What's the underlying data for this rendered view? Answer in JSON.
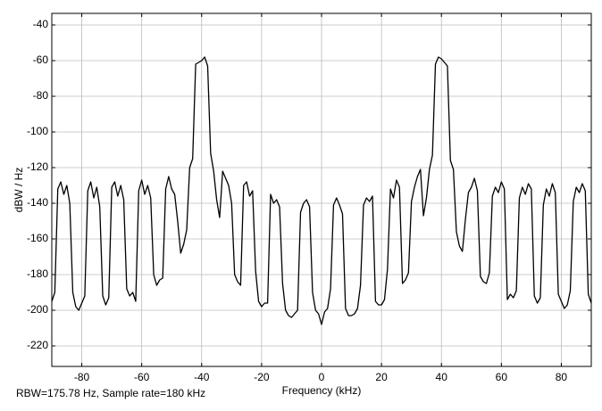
{
  "chart_data": {
    "type": "line",
    "xlabel": "Frequency (kHz)",
    "ylabel": "dBW / Hz",
    "annotation": "RBW=175.78 Hz, Sample rate=180 kHz",
    "color": "#000000",
    "grid": true,
    "xlim": [
      -90,
      90
    ],
    "ylim": [
      -231.5,
      -33.5
    ],
    "xticks": [
      -80,
      -60,
      -40,
      -20,
      0,
      20,
      40,
      60,
      80
    ],
    "yticks": [
      -220,
      -200,
      -180,
      -160,
      -140,
      -120,
      -100,
      -80,
      -60,
      -40
    ],
    "x": [
      -90,
      -89,
      -88,
      -87,
      -86,
      -85,
      -84,
      -83,
      -82,
      -81,
      -80,
      -79,
      -78,
      -77,
      -76,
      -75,
      -74,
      -73,
      -72,
      -71,
      -70,
      -69,
      -68,
      -67,
      -66,
      -65,
      -64,
      -63,
      -62,
      -61,
      -60,
      -59,
      -58,
      -57,
      -56,
      -55,
      -54,
      -53,
      -52,
      -51,
      -50,
      -49,
      -48,
      -47,
      -46,
      -45,
      -44,
      -43,
      -42,
      -41,
      -40,
      -39,
      -38,
      -37,
      -36,
      -35,
      -34,
      -33,
      -32,
      -31,
      -30,
      -29,
      -28,
      -27,
      -26,
      -25,
      -24,
      -23,
      -22,
      -21,
      -20,
      -19,
      -18,
      -17,
      -16,
      -15,
      -14,
      -13,
      -12,
      -11,
      -10,
      -9,
      -8,
      -7,
      -6,
      -5,
      -4,
      -3,
      -2,
      -1,
      0,
      1,
      2,
      3,
      4,
      5,
      6,
      7,
      8,
      9,
      10,
      11,
      12,
      13,
      14,
      15,
      16,
      17,
      18,
      19,
      20,
      21,
      22,
      23,
      24,
      25,
      26,
      27,
      28,
      29,
      30,
      31,
      32,
      33,
      34,
      35,
      36,
      37,
      38,
      39,
      40,
      41,
      42,
      43,
      44,
      45,
      46,
      47,
      48,
      49,
      50,
      51,
      52,
      53,
      54,
      55,
      56,
      57,
      58,
      59,
      60,
      61,
      62,
      63,
      64,
      65,
      66,
      67,
      68,
      69,
      70,
      71,
      72,
      73,
      74,
      75,
      76,
      77,
      78,
      79,
      80,
      81,
      82,
      83,
      84,
      85,
      86,
      87,
      88,
      89,
      90
    ],
    "values": [
      -195,
      -190,
      -132,
      -128,
      -135,
      -130,
      -140,
      -190,
      -198,
      -200,
      -196,
      -192,
      -133,
      -128,
      -137,
      -131,
      -142,
      -192,
      -197,
      -193,
      -131,
      -128,
      -136,
      -130,
      -138,
      -188,
      -192,
      -190,
      -195,
      -133,
      -127,
      -135,
      -130,
      -137,
      -180,
      -186,
      -183,
      -182,
      -132,
      -125,
      -132,
      -135,
      -150,
      -168,
      -163,
      -155,
      -120,
      -115,
      -62,
      -61,
      -60,
      -58,
      -63,
      -112,
      -122,
      -138,
      -148,
      -122,
      -126,
      -130,
      -140,
      -180,
      -184,
      -186,
      -130,
      -128,
      -136,
      -133,
      -178,
      -195,
      -198,
      -196,
      -196,
      -135,
      -140,
      -138,
      -142,
      -185,
      -200,
      -203,
      -204,
      -202,
      -200,
      -145,
      -140,
      -138,
      -142,
      -190,
      -200,
      -202,
      -208,
      -201,
      -199,
      -188,
      -141,
      -137,
      -141,
      -146,
      -199,
      -203,
      -203,
      -202,
      -199,
      -186,
      -141,
      -137,
      -139,
      -136,
      -195,
      -197,
      -197,
      -194,
      -177,
      -132,
      -137,
      -127,
      -131,
      -185,
      -183,
      -179,
      -139,
      -131,
      -125,
      -121,
      -147,
      -137,
      -121,
      -113,
      -62,
      -58,
      -59,
      -61,
      -63,
      -116,
      -121,
      -156,
      -164,
      -167,
      -149,
      -134,
      -131,
      -126,
      -133,
      -181,
      -184,
      -185,
      -179,
      -136,
      -131,
      -134,
      -128,
      -132,
      -194,
      -191,
      -193,
      -189,
      -137,
      -131,
      -135,
      -129,
      -132,
      -192,
      -196,
      -193,
      -141,
      -132,
      -136,
      -129,
      -134,
      -191,
      -195,
      -199,
      -197,
      -189,
      -139,
      -131,
      -134,
      -129,
      -133,
      -191,
      -196
    ]
  }
}
